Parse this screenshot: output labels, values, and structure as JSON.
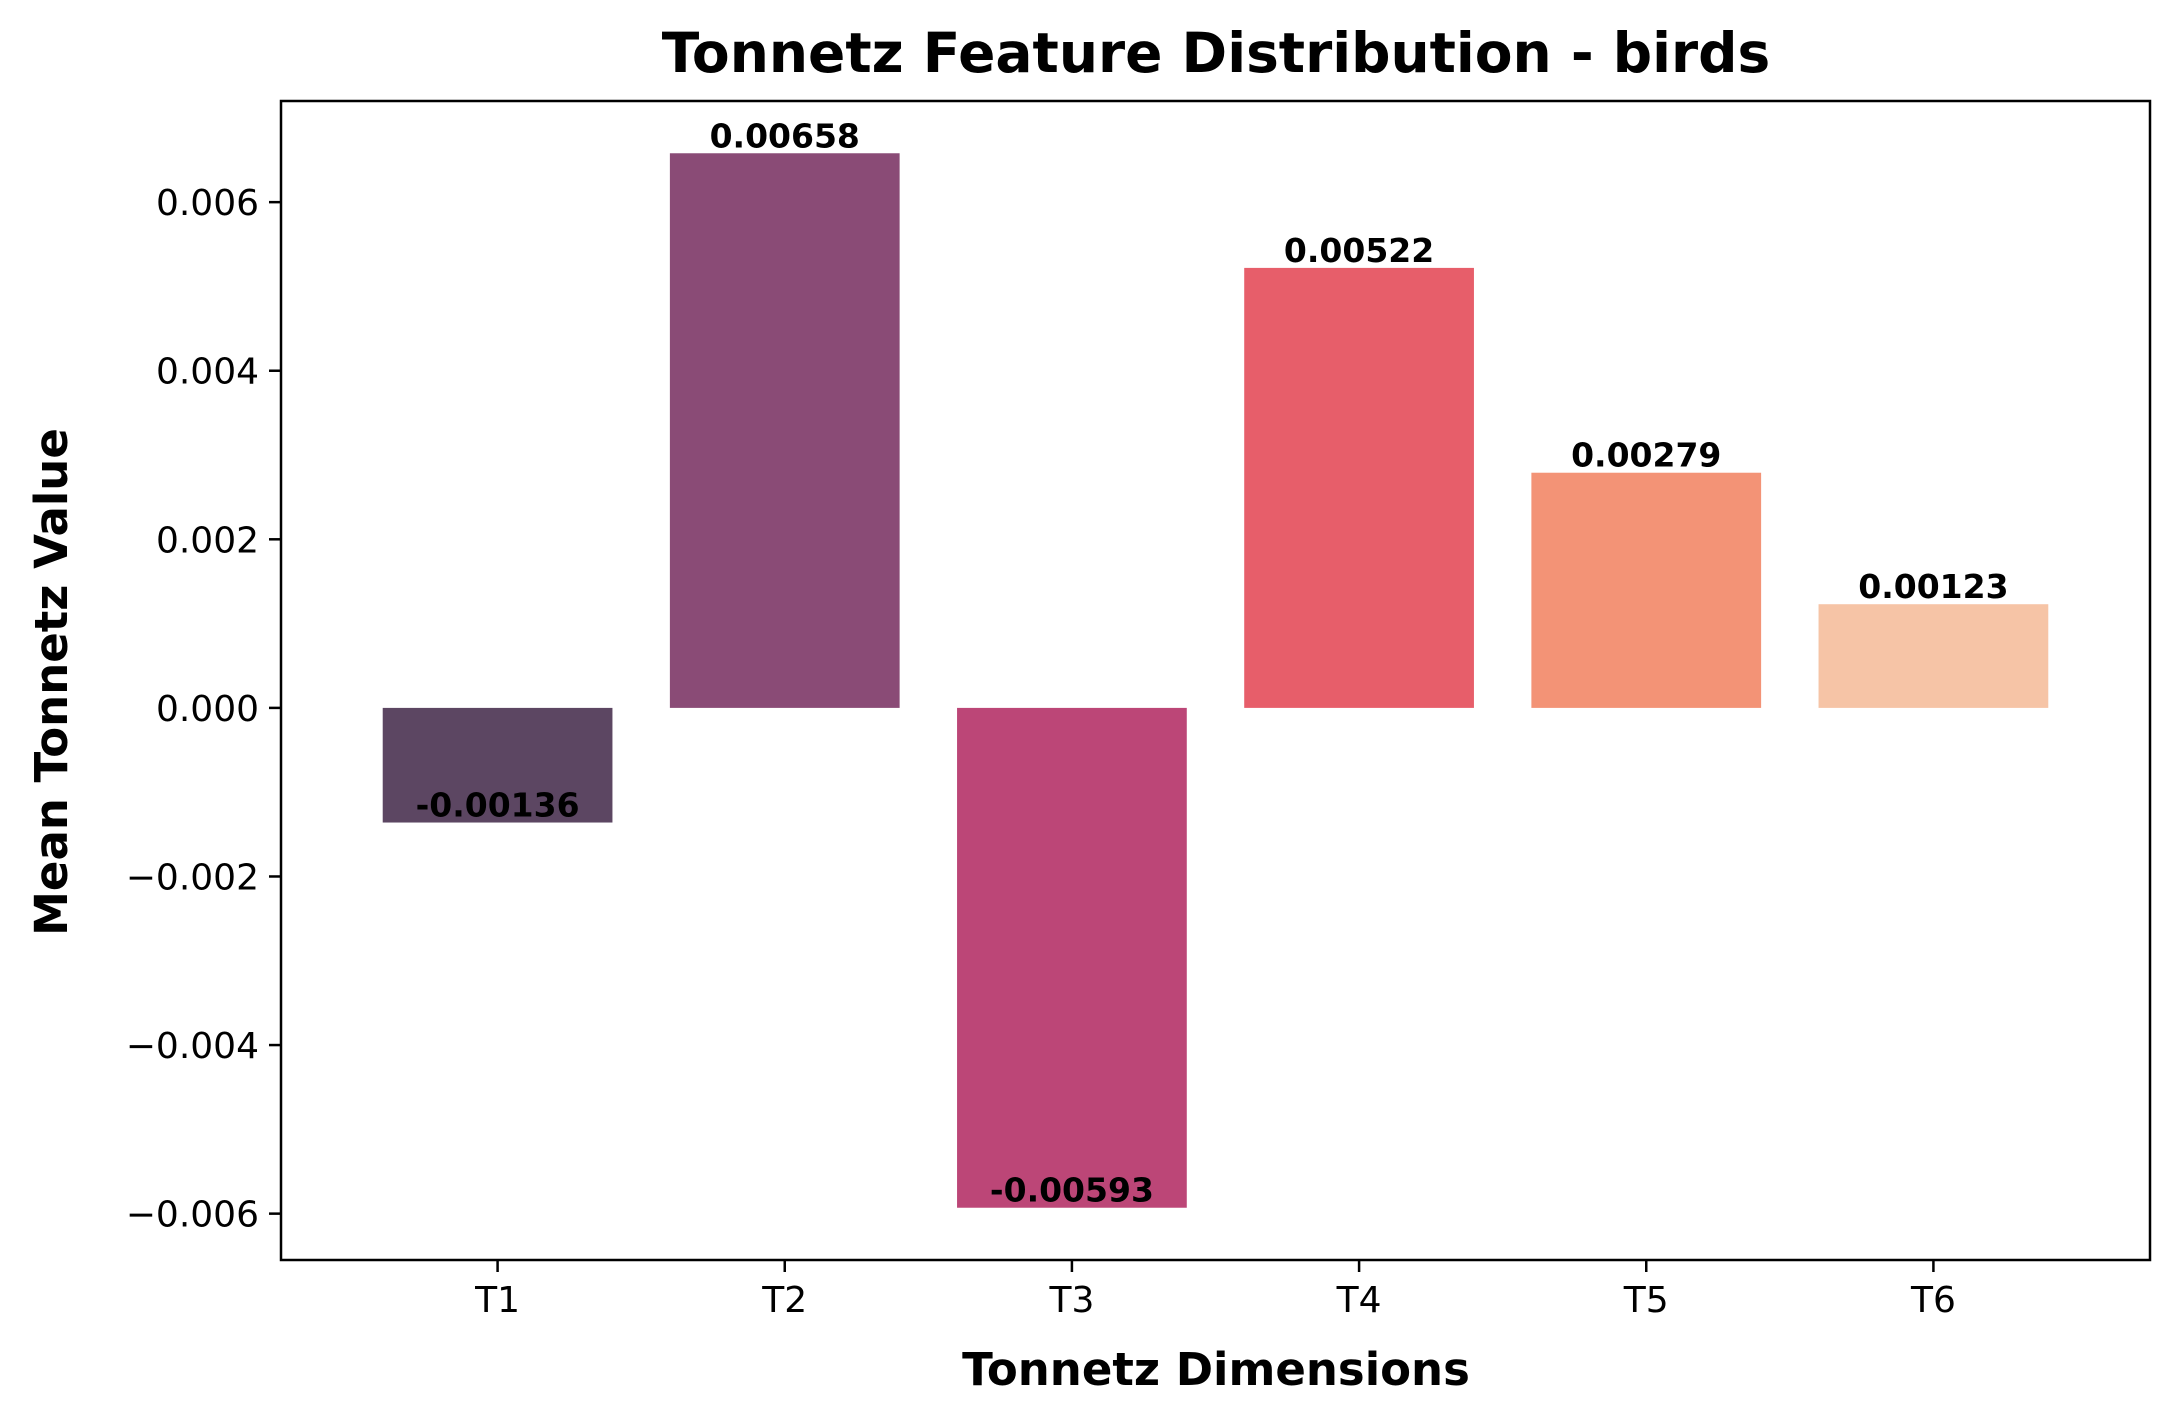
{
  "chart_data": {
    "type": "bar",
    "title": "Tonnetz Feature Distribution - birds",
    "xlabel": "Tonnetz Dimensions",
    "ylabel": "Mean Tonnetz Value",
    "categories": [
      "T1",
      "T2",
      "T3",
      "T4",
      "T5",
      "T6"
    ],
    "values": [
      -0.00136,
      0.00658,
      -0.00593,
      0.00522,
      0.00279,
      0.00123
    ],
    "value_labels": [
      "-0.00136",
      "0.00658",
      "-0.00593",
      "0.00522",
      "0.00279",
      "0.00123"
    ],
    "colors": [
      "#5c4662",
      "#8a4b76",
      "#bc4677",
      "#e75e6a",
      "#f39376",
      "#f6c4a6"
    ],
    "ylim": [
      -0.00655,
      0.0072
    ],
    "yticks": [
      -0.006,
      -0.004,
      -0.002,
      0.0,
      0.002,
      0.004,
      0.006
    ],
    "ytick_labels": [
      "−0.006",
      "−0.004",
      "−0.002",
      "0.000",
      "0.002",
      "0.004",
      "0.006"
    ],
    "grid": false,
    "legend": false
  }
}
